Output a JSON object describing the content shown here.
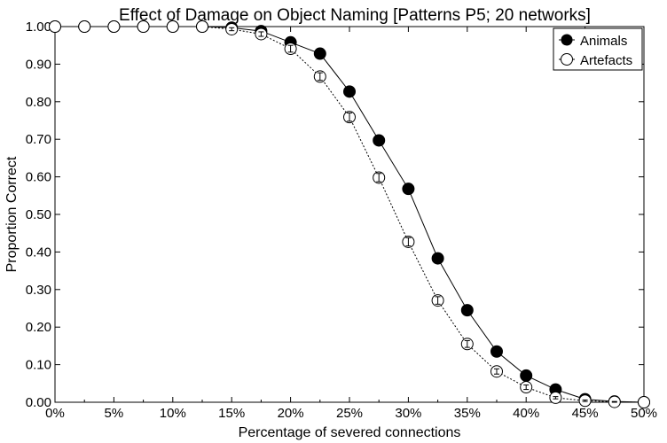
{
  "chart_data": {
    "type": "line",
    "title": "Effect of Damage on Object Naming [Patterns P5; 20 networks]",
    "xlabel": "Percentage of severed connections",
    "ylabel": "Proportion Correct",
    "xlim": [
      0,
      50
    ],
    "ylim": [
      0,
      1
    ],
    "xticks": [
      0,
      5,
      10,
      15,
      20,
      25,
      30,
      35,
      40,
      45,
      50
    ],
    "xtick_labels": [
      "0%",
      "5%",
      "10%",
      "15%",
      "20%",
      "25%",
      "30%",
      "35%",
      "40%",
      "45%",
      "50%"
    ],
    "yticks": [
      0,
      0.1,
      0.2,
      0.3,
      0.4,
      0.5,
      0.6,
      0.7,
      0.8,
      0.9,
      1.0
    ],
    "ytick_labels": [
      "0.00",
      "0.10",
      "0.20",
      "0.30",
      "0.40",
      "0.50",
      "0.60",
      "0.70",
      "0.80",
      "0.90",
      "1.00"
    ],
    "legend_position": "top-right",
    "grid": false,
    "x": [
      0,
      2.5,
      5,
      7.5,
      10,
      12.5,
      15,
      17.5,
      20,
      22.5,
      25,
      27.5,
      30,
      32.5,
      35,
      37.5,
      40,
      42.5,
      45,
      47.5,
      50
    ],
    "series": [
      {
        "name": "Animals",
        "marker": "filled-circle",
        "line": "solid",
        "color": "#000000",
        "values": [
          1.0,
          1.0,
          1.0,
          1.0,
          1.0,
          1.0,
          0.997,
          0.988,
          0.958,
          0.928,
          0.827,
          0.697,
          0.568,
          0.383,
          0.245,
          0.135,
          0.071,
          0.034,
          0.008,
          0.002,
          0.0
        ],
        "error": [
          0,
          0,
          0,
          0,
          0,
          0,
          0.003,
          0.004,
          0.006,
          0.007,
          0.008,
          0.009,
          0.009,
          0.009,
          0.007,
          0.006,
          0.005,
          0.004,
          0.002,
          0.001,
          0
        ]
      },
      {
        "name": "Artefacts",
        "marker": "open-circle",
        "line": "dotted",
        "color": "#000000",
        "values": [
          1.0,
          1.0,
          1.0,
          1.0,
          1.0,
          1.0,
          0.993,
          0.98,
          0.941,
          0.867,
          0.759,
          0.598,
          0.427,
          0.271,
          0.155,
          0.082,
          0.04,
          0.012,
          0.004,
          0.001,
          0.0
        ],
        "error": [
          0,
          0,
          0,
          0,
          0,
          0,
          0.004,
          0.006,
          0.009,
          0.01,
          0.011,
          0.011,
          0.011,
          0.01,
          0.009,
          0.007,
          0.006,
          0.003,
          0.002,
          0.001,
          0
        ]
      }
    ]
  }
}
